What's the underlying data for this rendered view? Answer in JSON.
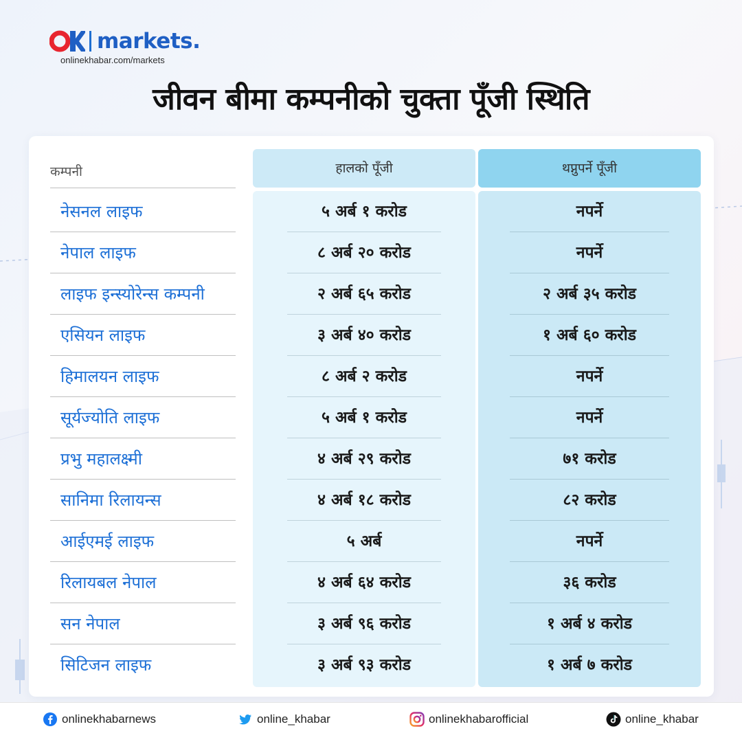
{
  "brand": {
    "word": "markets.",
    "url": "onlinekhabar.com/markets",
    "accent": "#1f5fc4",
    "red": "#e8252f"
  },
  "title": "जीवन बीमा कम्पनीको चुक्ता पूँजी स्थिति",
  "table": {
    "headers": {
      "company": "कम्पनी",
      "current": "हालको पूँजी",
      "additional": "थप्नुपर्ने पूँजी"
    },
    "rows": [
      {
        "company": "नेसनल लाइफ",
        "current": "५ अर्ब १ करोड",
        "additional": "नपर्ने"
      },
      {
        "company": "नेपाल लाइफ",
        "current": "८ अर्ब २० करोड",
        "additional": "नपर्ने"
      },
      {
        "company": "लाइफ इन्स्योरेन्स कम्पनी",
        "current": "२ अर्ब ६५ करोड",
        "additional": "२ अर्ब ३५ करोड"
      },
      {
        "company": "एसियन लाइफ",
        "current": "३ अर्ब ४० करोड",
        "additional": "१ अर्ब ६० करोड"
      },
      {
        "company": "हिमालयन लाइफ",
        "current": "८ अर्ब २ करोड",
        "additional": "नपर्ने"
      },
      {
        "company": "सूर्यज्योति लाइफ",
        "current": "५ अर्ब १ करोड",
        "additional": "नपर्ने"
      },
      {
        "company": "प्रभु महालक्ष्मी",
        "current": "४ अर्ब २९ करोड",
        "additional": "७१ करोड"
      },
      {
        "company": "सानिमा रिलायन्स",
        "current": "४ अर्ब १८ करोड",
        "additional": "८२ करोड"
      },
      {
        "company": "आईएमई लाइफ",
        "current": "५ अर्ब",
        "additional": "नपर्ने"
      },
      {
        "company": "रिलायबल नेपाल",
        "current": "४ अर्ब ६४ करोड",
        "additional": "३६ करोड"
      },
      {
        "company": "सन नेपाल",
        "current": "३ अर्ब ९६ करोड",
        "additional": "१ अर्ब ४ करोड"
      },
      {
        "company": "सिटिजन लाइफ",
        "current": "३ अर्ब ९३ करोड",
        "additional": "१ अर्ब ७ करोड"
      }
    ]
  },
  "footer": {
    "facebook": "onlinekhabarnews",
    "twitter": "online_khabar",
    "instagram": "onlinekhabarofficial",
    "tiktok": "online_khabar"
  }
}
